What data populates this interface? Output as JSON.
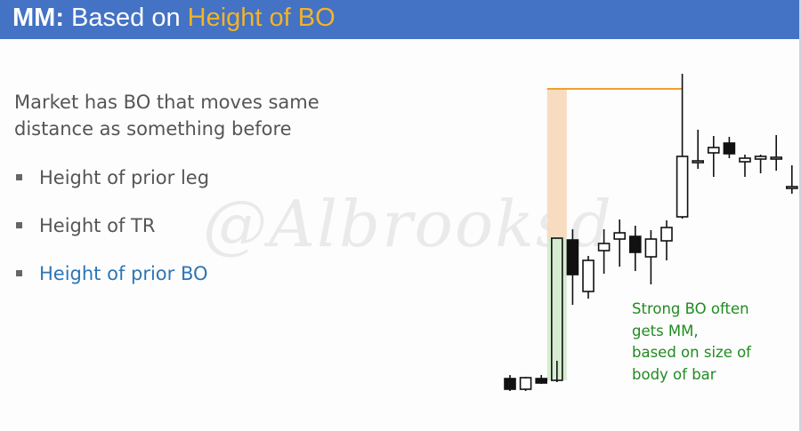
{
  "title": {
    "prefix": "MM:",
    "middle": " Based on ",
    "accent": "Height of BO"
  },
  "intro_text": "Market has BO that moves same distance as something before",
  "bullets": [
    {
      "label": "Height of prior leg",
      "highlight": false
    },
    {
      "label": "Height of TR",
      "highlight": false
    },
    {
      "label": "Height of prior BO",
      "highlight": true
    }
  ],
  "watermark": "@Albrooksd",
  "note": {
    "lines": [
      "Strong BO often",
      "gets MM,",
      "based on size of",
      "body of bar"
    ]
  },
  "colors": {
    "title_bar": "#4472c4",
    "title_accent": "#f5b324",
    "highlight_bullet": "#2e75b6",
    "note_text": "#218b21",
    "bo_body_fill": "#d6ecd0",
    "mm_projection_fill": "#f8dcc0",
    "mm_line": "#f0a030"
  },
  "chart_data": {
    "type": "candlestick",
    "bars": [
      {
        "o": 24,
        "h": 28,
        "l": 10,
        "c": 12,
        "bull": false
      },
      {
        "o": 12,
        "h": 26,
        "l": 10,
        "c": 25,
        "bull": true
      },
      {
        "o": 24,
        "h": 28,
        "l": 18,
        "c": 19,
        "bull": false
      },
      {
        "o": 22,
        "h": 44,
        "l": 20,
        "c": 182,
        "bull": true,
        "highlight": "bo"
      },
      {
        "o": 180,
        "h": 192,
        "l": 107,
        "c": 141,
        "bull": false
      },
      {
        "o": 122,
        "h": 162,
        "l": 114,
        "c": 157,
        "bull": true
      },
      {
        "o": 168,
        "h": 192,
        "l": 142,
        "c": 176,
        "bull": true
      },
      {
        "o": 181,
        "h": 203,
        "l": 150,
        "c": 188,
        "bull": true
      },
      {
        "o": 184,
        "h": 196,
        "l": 145,
        "c": 166,
        "bull": false
      },
      {
        "o": 161,
        "h": 191,
        "l": 130,
        "c": 181,
        "bull": true
      },
      {
        "o": 179,
        "h": 202,
        "l": 157,
        "c": 194,
        "bull": true
      },
      {
        "o": 206,
        "h": 367,
        "l": 204,
        "c": 274,
        "bull": true
      },
      {
        "o": 269,
        "h": 304,
        "l": 260,
        "c": 267,
        "bull": true
      },
      {
        "o": 284,
        "h": 297,
        "l": 251,
        "c": 278,
        "bull": true
      },
      {
        "o": 289,
        "h": 296,
        "l": 272,
        "c": 277,
        "bull": false
      },
      {
        "o": 272,
        "h": 276,
        "l": 251,
        "c": 268,
        "bull": true
      },
      {
        "o": 271,
        "h": 276,
        "l": 255,
        "c": 274,
        "bull": true
      },
      {
        "o": 273,
        "h": 298,
        "l": 258,
        "c": 273,
        "bull": true
      },
      {
        "o": 240,
        "h": 264,
        "l": 232,
        "c": 240,
        "bull": true
      }
    ],
    "mm_target_level": 350
  }
}
